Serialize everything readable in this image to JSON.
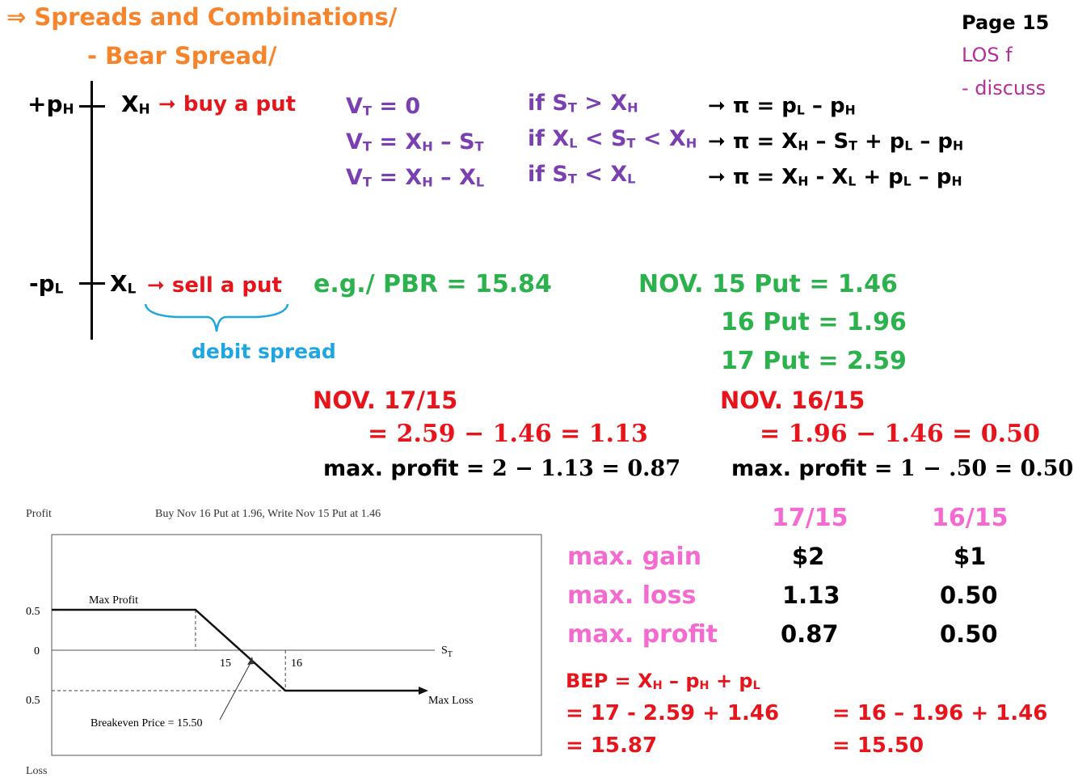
{
  "header": {
    "title_arrow": "⇒",
    "title": "Spreads and Combinations/",
    "subtitle": "- Bear Spread/",
    "page": "Page 15",
    "los": "LOS f",
    "discuss": "- discuss"
  },
  "diagram": {
    "plus_p": "+p",
    "plus_p_sub": "H",
    "x_high": "X",
    "x_high_sub": "H",
    "buy_put": "➞ buy a put",
    "minus_p": "-p",
    "minus_p_sub": "L",
    "x_low": "X",
    "x_low_sub": "L",
    "sell_put": "➞ sell a put",
    "debit_spread": "debit spread"
  },
  "payoff": {
    "rows": [
      {
        "v": "V<sub>T</sub> = 0",
        "cond": "if S<sub>T</sub> &gt; X<sub>H</sub>",
        "pi": "➞ π = p<sub>L</sub> – p<sub>H</sub>"
      },
      {
        "v": "V<sub>T</sub> = X<sub>H</sub> – S<sub>T</sub>",
        "cond": "if X<sub>L</sub> &lt; S<sub>T</sub> &lt; X<sub>H</sub>",
        "pi": "➞ π = X<sub>H</sub> – S<sub>T</sub> + p<sub>L</sub> – p<sub>H</sub>"
      },
      {
        "v": "V<sub>T</sub> = X<sub>H</sub> – X<sub>L</sub>",
        "cond": "if S<sub>T</sub> &lt; X<sub>L</sub>",
        "pi": "➞ π = X<sub>H</sub> - X<sub>L</sub> + p<sub>L</sub> – p<sub>H</sub>"
      }
    ]
  },
  "example": {
    "eg": "e.g./ PBR = 15.84",
    "nov_15": "NOV. 15 Put = 1.46",
    "nov_16": "16 Put = 1.96",
    "nov_17": "17 Put = 2.59"
  },
  "calc": {
    "left_title": "NOV. 17/15",
    "left_eq": "= 2.59 − 1.46 = 1.13",
    "left_profit_label": "max. profit = ",
    "left_profit_val": "2 − 1.13  = 0.87",
    "right_title": "NOV. 16/15",
    "right_eq": "= 1.96 − 1.46 = 0.50",
    "right_profit_label": "max. profit = ",
    "right_profit_val": "1 − .50 = 0.50"
  },
  "summary": {
    "col1": "17/15",
    "col2": "16/15",
    "rows": [
      {
        "label": "max. gain",
        "c1": "$2",
        "c2": "$1"
      },
      {
        "label": "max. loss",
        "c1": "1.13",
        "c2": "0.50"
      },
      {
        "label": "max. profit",
        "c1": "0.87",
        "c2": "0.50"
      }
    ]
  },
  "bep": {
    "formula": "BEP = X<sub>H</sub> – p<sub>H</sub> + p<sub>L</sub>",
    "left_1": "= 17 - 2.59 + 1.46",
    "left_2": "= 15.87",
    "right_1": "= 16 – 1.96 + 1.46",
    "right_2": "= 15.50"
  },
  "chart": {
    "profit_label": "Profit",
    "loss_label": "Loss",
    "title": "Buy Nov 16 Put at 1.96, Write Nov 15 Put at 1.46",
    "max_profit_label": "Max Profit",
    "max_loss_label": "Max Loss",
    "breakeven_label": "Breakeven Price = 15.50",
    "st_label": "S",
    "st_sub": "T",
    "ytick_top": "0.5",
    "ytick_zero": "0",
    "ytick_bottom": "0.5",
    "xtick_15": "15",
    "xtick_16": "16"
  },
  "chart_data": {
    "type": "line",
    "title": "Buy Nov 16 Put at 1.96, Write Nov 15 Put at 1.46",
    "xlabel": "ST",
    "ylabel": "Profit / Loss",
    "x": [
      13.4,
      15,
      16,
      17.5
    ],
    "series": [
      {
        "values": [
          0.5,
          0.5,
          -0.5,
          -0.5
        ]
      }
    ],
    "ylim": [
      -0.5,
      0.5
    ],
    "xticks": [
      15,
      16
    ],
    "annotations": [
      "Max Profit",
      "Max Loss",
      "Breakeven Price = 15.50"
    ]
  },
  "colors": {
    "orange": "#f7842a",
    "purple": "#7a3fb0",
    "red": "#e8141c",
    "green": "#2bb24c",
    "pink": "#f36ad0",
    "blue": "#1fa6e0",
    "magenta": "#b52f9b"
  }
}
